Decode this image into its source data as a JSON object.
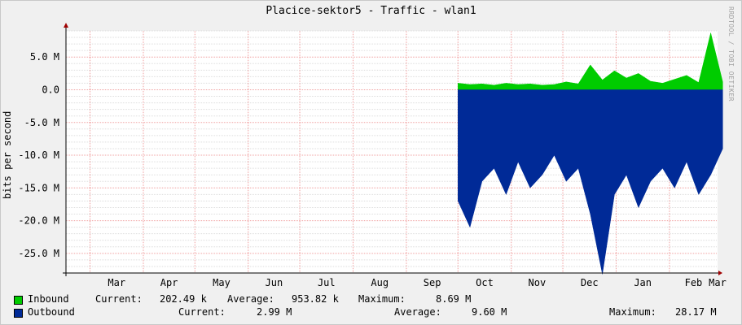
{
  "title": "Placice-sektor5 - Traffic - wlan1",
  "watermark": "RRDTOOL / TOBI OETIKER",
  "legend": {
    "inbound": {
      "name": "Inbound",
      "color": "#00CC00",
      "current_label": "Current:",
      "current": "202.49 k",
      "average_label": "Average:",
      "average": "953.82 k",
      "maximum_label": "Maximum:",
      "maximum": "8.69 M"
    },
    "outbound": {
      "name": "Outbound",
      "color": "#002A97",
      "current_label": "Current:",
      "current": "2.99 M",
      "average_label": "Average:",
      "average": "9.60 M",
      "maximum_label": "Maximum:",
      "maximum": "28.17 M"
    }
  },
  "chart_data": {
    "type": "area",
    "title": "Placice-sektor5 - Traffic - wlan1",
    "ylabel": "bits per second",
    "xlabel": "",
    "ylim": [
      -28000000,
      9000000
    ],
    "yticks": [
      5000000,
      0,
      -5000000,
      -10000000,
      -15000000,
      -20000000,
      -25000000
    ],
    "ytick_labels": [
      "5.0 M",
      "0.0",
      "-5.0 M",
      "-10.0 M",
      "-15.0 M",
      "-20.0 M",
      "-25.0 M"
    ],
    "x_months": [
      "Mar",
      "Apr",
      "May",
      "Jun",
      "Jul",
      "Aug",
      "Sep",
      "Oct",
      "Nov",
      "Dec",
      "Jan",
      "Feb",
      "Mar"
    ],
    "grid": true,
    "series": [
      {
        "name": "Inbound",
        "color": "#00CC00",
        "x": [
          "2013-10-01",
          "2013-10-08",
          "2013-10-15",
          "2013-10-22",
          "2013-10-29",
          "2013-11-05",
          "2013-11-12",
          "2013-11-19",
          "2013-11-26",
          "2013-12-03",
          "2013-12-10",
          "2013-12-17",
          "2013-12-24",
          "2013-12-31",
          "2014-01-07",
          "2014-01-14",
          "2014-01-21",
          "2014-01-28",
          "2014-02-04",
          "2014-02-11",
          "2014-02-18",
          "2014-02-25",
          "2014-03-04"
        ],
        "values": [
          1000000,
          800000,
          900000,
          700000,
          1000000,
          800000,
          900000,
          700000,
          800000,
          1200000,
          900000,
          3800000,
          1500000,
          2900000,
          1800000,
          2500000,
          1300000,
          1000000,
          1600000,
          2200000,
          1100000,
          8690000,
          1200000
        ]
      },
      {
        "name": "Outbound",
        "color": "#002A97",
        "x": [
          "2013-10-01",
          "2013-10-08",
          "2013-10-15",
          "2013-10-22",
          "2013-10-29",
          "2013-11-05",
          "2013-11-12",
          "2013-11-19",
          "2013-11-26",
          "2013-12-03",
          "2013-12-10",
          "2013-12-17",
          "2013-12-24",
          "2013-12-31",
          "2014-01-07",
          "2014-01-14",
          "2014-01-21",
          "2014-01-28",
          "2014-02-04",
          "2014-02-11",
          "2014-02-18",
          "2014-02-25",
          "2014-03-04"
        ],
        "values": [
          -17000000,
          -21000000,
          -14000000,
          -12000000,
          -16000000,
          -11000000,
          -15000000,
          -13000000,
          -10000000,
          -14000000,
          -12000000,
          -19000000,
          -28170000,
          -16000000,
          -13000000,
          -18000000,
          -14000000,
          -12000000,
          -15000000,
          -11000000,
          -16000000,
          -13000000,
          -9000000
        ]
      }
    ]
  }
}
